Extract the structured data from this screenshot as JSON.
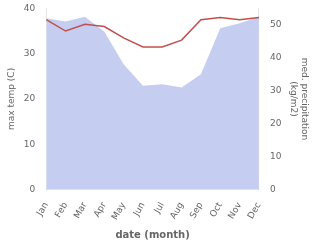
{
  "chart_data": {
    "type": "line",
    "categories": [
      "Jan",
      "Feb",
      "Mar",
      "Apr",
      "May",
      "Jun",
      "Jul",
      "Aug",
      "Sep",
      "Oct",
      "Nov",
      "Dec"
    ],
    "series": [
      {
        "color": "#c0504d",
        "values": [
          37.5,
          35.0,
          36.5,
          36.0,
          33.5,
          31.5,
          31.5,
          33.0,
          37.5,
          38.0,
          37.5,
          38.0
        ]
      },
      {
        "type": "area",
        "axis": "y2",
        "color": "#c5cdf0",
        "values": [
          52.0,
          51.0,
          52.5,
          48.0,
          38.0,
          31.5,
          32.0,
          31.0,
          35.0,
          49.0,
          50.5,
          52.5
        ]
      }
    ],
    "xlabel": "date (month)",
    "ylabel": "max temp (C)",
    "y2label": "med. precipitation\n(kg/m2)",
    "ylim": [
      0,
      40
    ],
    "yticks": [
      0,
      10,
      20,
      30,
      40
    ],
    "y2lim": [
      0,
      55
    ],
    "y2ticks": [
      0,
      10,
      20,
      30,
      40,
      50
    ],
    "grid": false
  }
}
